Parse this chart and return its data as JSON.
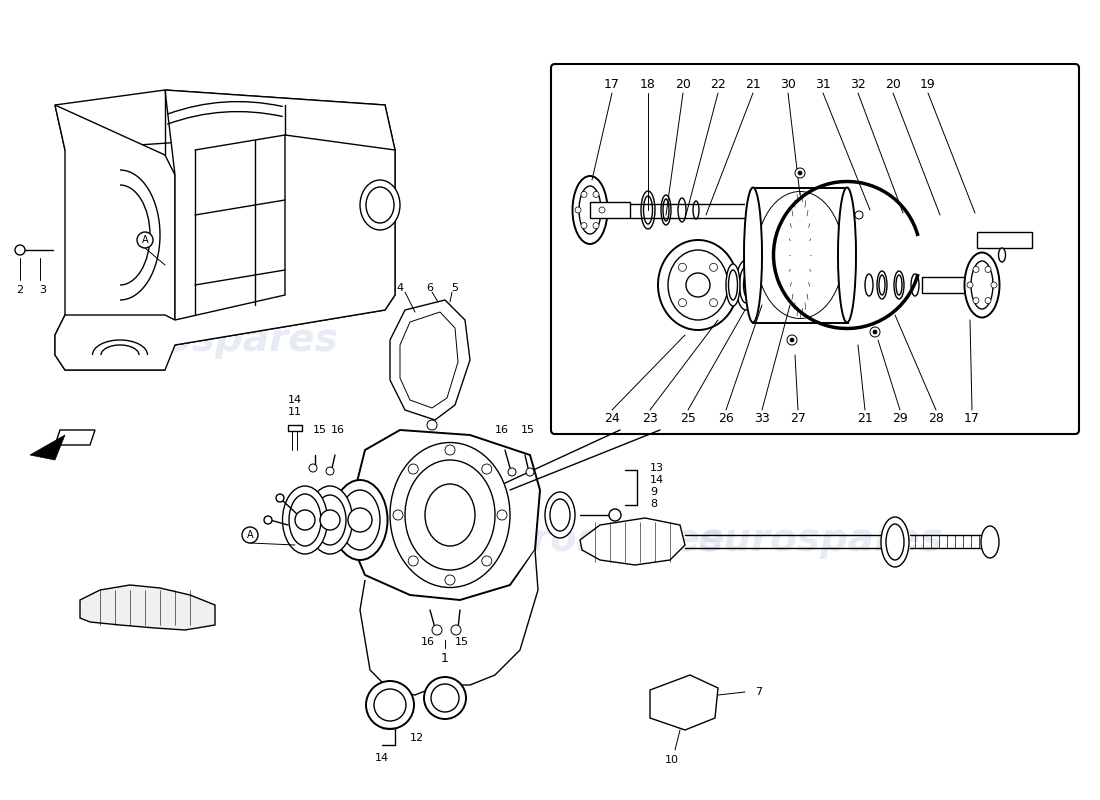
{
  "bg": "#ffffff",
  "lc": "#000000",
  "wm_color": "#c8d4e8",
  "wm_alpha": 0.45,
  "wm_text": "eurospares",
  "figsize": [
    11.0,
    8.0
  ],
  "dpi": 100
}
